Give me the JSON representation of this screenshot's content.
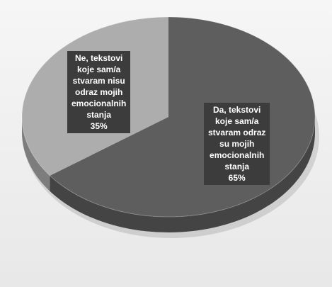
{
  "chart_data": {
    "type": "pie",
    "style": "3d",
    "colors": {
      "Da": "#5e5e5e",
      "Ne": "#adadad",
      "background": "#eeeeee"
    },
    "slices": [
      {
        "key": "Da",
        "value": 65,
        "label_lines": [
          "Da, tekstovi",
          "koje sam/a",
          "stvaram odraz",
          "su mojih",
          "emocionalnih",
          "stanja",
          "65%"
        ]
      },
      {
        "key": "Ne",
        "value": 35,
        "label_lines": [
          "Ne, tekstovi",
          "koje sam/a",
          "stvaram nisu",
          "odraz mojih",
          "emocionalnih",
          "stanja",
          "35%"
        ]
      }
    ]
  }
}
